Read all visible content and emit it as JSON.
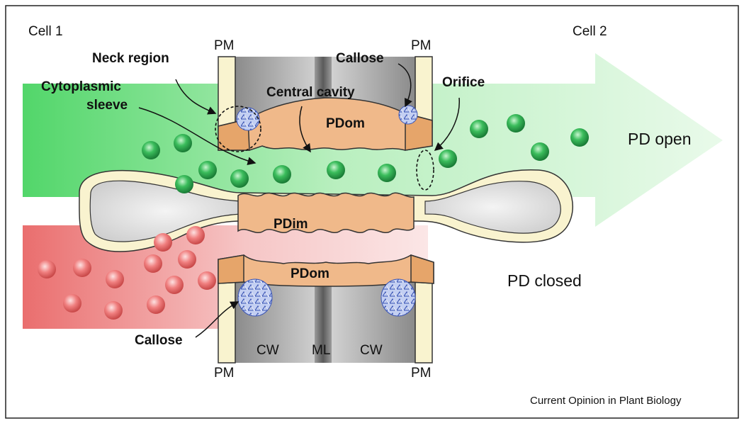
{
  "labels": {
    "cell1": "Cell 1",
    "cell2": "Cell 2",
    "pm_top_left": "PM",
    "pm_top_right": "PM",
    "pm_bottom_left": "PM",
    "pm_bottom_right": "PM",
    "neck_region": "Neck region",
    "callose_top": "Callose",
    "cytoplasmic_line1": "Cytoplasmic",
    "cytoplasmic_line2": "sleeve",
    "central_cavity": "Central cavity",
    "orifice": "Orifice",
    "pdom_top": "PDom",
    "pdom_bottom": "PDom",
    "pdim": "PDim",
    "pd_open": "PD open",
    "pd_closed": "PD closed",
    "callose_bottom": "Callose",
    "cw_left": "CW",
    "ml": "ML",
    "cw_right": "CW",
    "credit": "Current Opinion in Plant Biology"
  },
  "colors": {
    "open_arrow": "#7fdc8a",
    "closed_band": "#f2a0a0",
    "green_ball": "#2e9e4e",
    "red_ball": "#e46b6b",
    "membrane_fill": "#f9f3cf",
    "er_fill": "#f0b98a",
    "cell_wall": "#6e6e6e",
    "callose": "#b9c7ee"
  }
}
